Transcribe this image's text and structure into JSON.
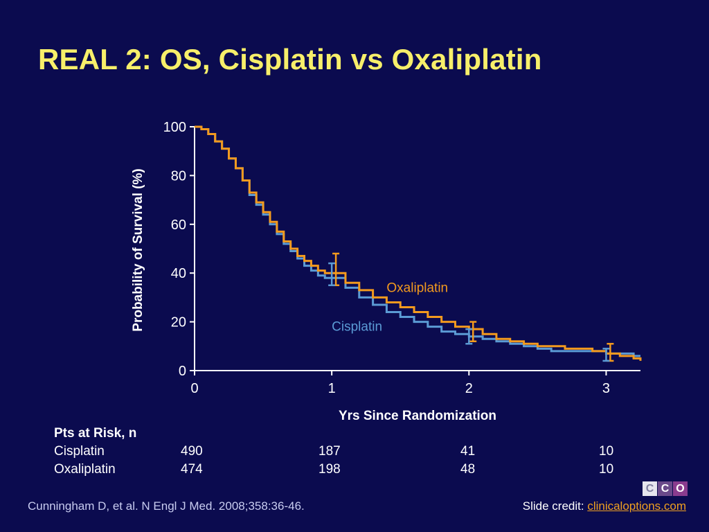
{
  "slide": {
    "title": "REAL 2: OS, Cisplatin vs Oxaliplatin",
    "citation": "Cunningham D, et al. N Engl J Med. 2008;358:36-46.",
    "credit_prefix": "Slide credit: ",
    "credit_link": "clinicaloptions.com",
    "logo_letters": [
      "C",
      "C",
      "O"
    ]
  },
  "colors": {
    "background": "#0b0b4f",
    "title": "#f7ef6a",
    "cisplatin": "#5b9bd5",
    "oxaliplatin": "#f39a1e",
    "axis": "#ffffff"
  },
  "chart_data": {
    "type": "line",
    "step": true,
    "ylabel": "Probability of Survival (%)",
    "xlabel": "Yrs Since Randomization",
    "xlim": [
      0,
      3.25
    ],
    "ylim": [
      0,
      100
    ],
    "x_ticks": [
      0,
      1,
      2,
      3
    ],
    "y_ticks": [
      0,
      20,
      40,
      60,
      80,
      100
    ],
    "series": [
      {
        "name": "Oxaliplatin",
        "color": "#f39a1e",
        "x": [
          0,
          0.05,
          0.1,
          0.15,
          0.2,
          0.25,
          0.3,
          0.35,
          0.4,
          0.45,
          0.5,
          0.55,
          0.6,
          0.65,
          0.7,
          0.75,
          0.8,
          0.85,
          0.9,
          0.95,
          1.0,
          1.1,
          1.2,
          1.3,
          1.4,
          1.5,
          1.6,
          1.7,
          1.8,
          1.9,
          2.0,
          2.1,
          2.2,
          2.3,
          2.4,
          2.5,
          2.6,
          2.7,
          2.8,
          2.9,
          3.0,
          3.1,
          3.2,
          3.25
        ],
        "y": [
          100,
          99,
          97,
          94,
          91,
          87,
          83,
          78,
          73,
          69,
          65,
          61,
          57,
          53,
          50,
          47,
          45,
          43,
          41,
          40,
          40,
          36,
          33,
          30,
          28,
          26,
          24,
          22,
          20,
          18,
          17,
          15,
          13,
          12,
          11,
          10,
          10,
          9,
          9,
          8,
          7,
          6,
          5,
          4
        ]
      },
      {
        "name": "Cisplatin",
        "color": "#5b9bd5",
        "x": [
          0,
          0.05,
          0.1,
          0.15,
          0.2,
          0.25,
          0.3,
          0.35,
          0.4,
          0.45,
          0.5,
          0.55,
          0.6,
          0.65,
          0.7,
          0.75,
          0.8,
          0.85,
          0.9,
          0.95,
          1.0,
          1.1,
          1.2,
          1.3,
          1.4,
          1.5,
          1.6,
          1.7,
          1.8,
          1.9,
          2.0,
          2.1,
          2.2,
          2.3,
          2.4,
          2.5,
          2.6,
          2.7,
          2.8,
          2.9,
          3.0,
          3.1,
          3.2,
          3.25
        ],
        "y": [
          100,
          99,
          97,
          94,
          91,
          87,
          83,
          78,
          72,
          68,
          64,
          60,
          56,
          52,
          49,
          46,
          43,
          41,
          39,
          38,
          38,
          34,
          30,
          27,
          24,
          22,
          20,
          18,
          16,
          15,
          14,
          13,
          12,
          11,
          10,
          9,
          8,
          8,
          8,
          8,
          7,
          7,
          6,
          6
        ]
      }
    ],
    "error_bars": [
      {
        "series": "Oxaliplatin",
        "x": 1.03,
        "low": 35,
        "high": 48
      },
      {
        "series": "Cisplatin",
        "x": 1.0,
        "low": 35,
        "high": 44
      },
      {
        "series": "Oxaliplatin",
        "x": 2.03,
        "low": 12,
        "high": 20
      },
      {
        "series": "Cisplatin",
        "x": 2.0,
        "low": 11,
        "high": 17
      },
      {
        "series": "Oxaliplatin",
        "x": 3.03,
        "low": 4,
        "high": 11
      },
      {
        "series": "Cisplatin",
        "x": 3.0,
        "low": 4,
        "high": 9
      }
    ],
    "annotations": [
      {
        "text": "Oxaliplatin",
        "x": 1.4,
        "y": 34,
        "series": "Oxaliplatin"
      },
      {
        "text": "Cisplatin",
        "x": 1.0,
        "y": 18,
        "series": "Cisplatin"
      }
    ]
  },
  "risk_table": {
    "heading": "Pts at Risk, n",
    "rows": [
      {
        "name": "Cisplatin",
        "values": [
          "490",
          "187",
          "41",
          "10"
        ]
      },
      {
        "name": "Oxaliplatin",
        "values": [
          "474",
          "198",
          "48",
          "10"
        ]
      }
    ]
  }
}
